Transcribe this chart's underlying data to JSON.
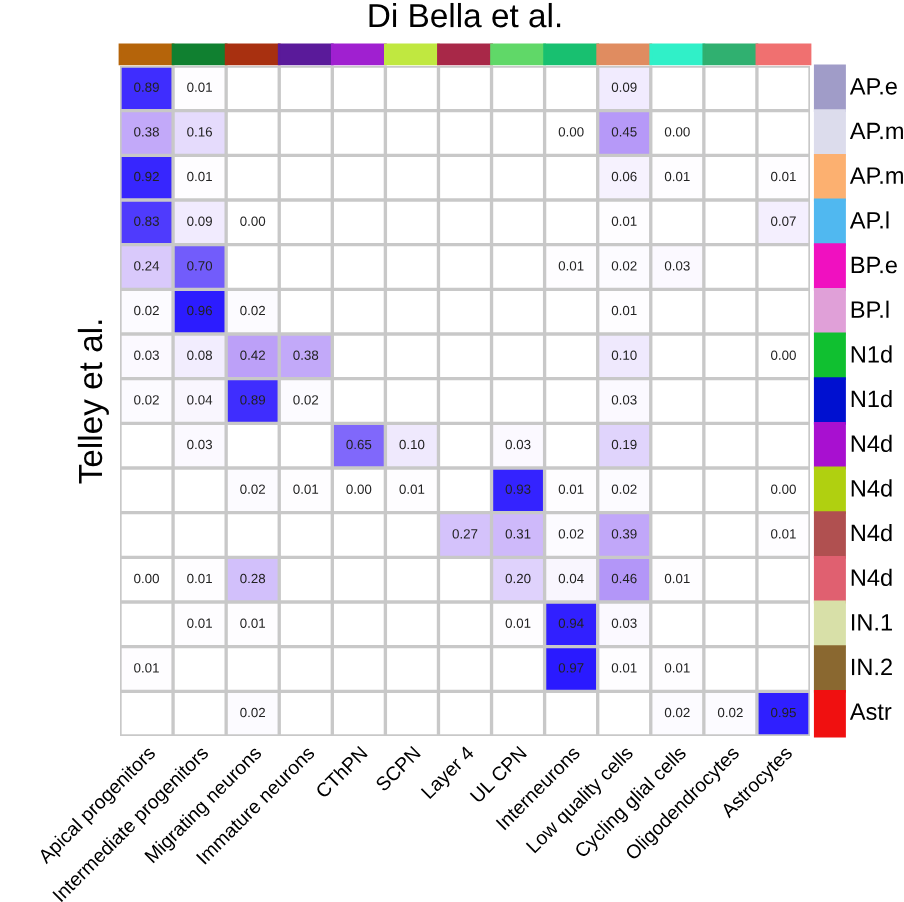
{
  "chart_data": {
    "type": "heatmap",
    "title": "Di Bella et al.",
    "ylabel": "Telley et al.",
    "data_labels": true,
    "categories": [
      "Apical progenitors",
      "Intermediate progenitors",
      "Migrating neurons",
      "Immature neurons",
      "CThPN",
      "SCPN",
      "Layer 4",
      "UL CPN",
      "Interneurons",
      "Low quality cells",
      "Cycling glial cells",
      "Oligodendrocytes",
      "Astrocytes"
    ],
    "y_categories": [
      "AP.e",
      "AP.m",
      "AP.m",
      "AP.l",
      "BP.e",
      "BP.l",
      "N1d",
      "N1d",
      "N4d",
      "N4d",
      "N4d",
      "N4d",
      "IN.1",
      "IN.2",
      "Astr"
    ],
    "cells": [
      [
        0.89,
        0.01,
        null,
        null,
        null,
        null,
        null,
        null,
        null,
        0.09,
        null,
        null,
        null
      ],
      [
        0.38,
        0.16,
        null,
        null,
        null,
        null,
        null,
        null,
        0.0,
        0.45,
        0.0,
        null,
        null
      ],
      [
        0.92,
        0.01,
        null,
        null,
        null,
        null,
        null,
        null,
        null,
        0.06,
        0.01,
        null,
        0.01
      ],
      [
        0.83,
        0.09,
        0.0,
        null,
        null,
        null,
        null,
        null,
        null,
        0.01,
        null,
        null,
        0.07
      ],
      [
        0.24,
        0.7,
        null,
        null,
        null,
        null,
        null,
        null,
        0.01,
        0.02,
        0.03,
        null,
        null
      ],
      [
        0.02,
        0.96,
        0.02,
        null,
        null,
        null,
        null,
        null,
        null,
        0.01,
        null,
        null,
        null
      ],
      [
        0.03,
        0.08,
        0.42,
        0.38,
        null,
        null,
        null,
        null,
        null,
        0.1,
        null,
        null,
        0.0
      ],
      [
        0.02,
        0.04,
        0.89,
        0.02,
        null,
        null,
        null,
        null,
        null,
        0.03,
        null,
        null,
        null
      ],
      [
        null,
        0.03,
        null,
        null,
        0.65,
        0.1,
        null,
        0.03,
        null,
        0.19,
        null,
        null,
        null
      ],
      [
        null,
        null,
        0.02,
        0.01,
        0.0,
        0.01,
        null,
        0.93,
        0.01,
        0.02,
        null,
        null,
        0.0
      ],
      [
        null,
        null,
        null,
        null,
        null,
        null,
        0.27,
        0.31,
        0.02,
        0.39,
        null,
        null,
        0.01
      ],
      [
        0.0,
        0.01,
        0.28,
        null,
        null,
        null,
        null,
        0.2,
        0.04,
        0.46,
        0.01,
        null,
        null
      ],
      [
        null,
        0.01,
        0.01,
        null,
        null,
        null,
        null,
        0.01,
        0.94,
        0.03,
        null,
        null,
        null
      ],
      [
        0.01,
        null,
        null,
        null,
        null,
        null,
        null,
        null,
        0.97,
        0.01,
        0.01,
        null,
        null
      ],
      [
        null,
        null,
        0.02,
        null,
        null,
        null,
        null,
        null,
        null,
        null,
        0.02,
        0.02,
        0.95
      ]
    ],
    "grid": true,
    "cell_labels": [
      [
        "0.89",
        "0.01",
        null,
        null,
        null,
        null,
        null,
        null,
        null,
        "0.09",
        null,
        null,
        null
      ],
      [
        "0.38",
        "0.16",
        null,
        null,
        null,
        null,
        null,
        null,
        "0.00",
        "0.45",
        "0.00",
        null,
        null
      ],
      [
        "0.92",
        "0.01",
        null,
        null,
        null,
        null,
        null,
        null,
        null,
        "0.06",
        "0.01",
        null,
        "0.01"
      ],
      [
        "0.83",
        "0.09",
        "0.00",
        null,
        null,
        null,
        null,
        null,
        null,
        "0.01",
        null,
        null,
        "0.07"
      ],
      [
        "0.24",
        "0.70",
        null,
        null,
        null,
        null,
        null,
        null,
        "0.01",
        "0.02",
        "0.03",
        null,
        null
      ],
      [
        "0.02",
        "0.96",
        "0.02",
        null,
        null,
        null,
        null,
        null,
        null,
        "0.01",
        null,
        null,
        null
      ],
      [
        "0.03",
        "0.08",
        "0.42",
        "0.38",
        null,
        null,
        null,
        null,
        null,
        "0.10",
        null,
        null,
        "0.00"
      ],
      [
        "0.02",
        "0.04",
        "0.89",
        "0.02",
        null,
        null,
        null,
        null,
        null,
        "0.03",
        null,
        null,
        null
      ],
      [
        null,
        "0.03",
        null,
        null,
        "0.65",
        "0.10",
        null,
        "0.03",
        null,
        "0.19",
        null,
        null,
        null
      ],
      [
        null,
        null,
        "0.02",
        "0.01",
        "0.00",
        "0.01",
        null,
        "0.93",
        "0.01",
        "0.02",
        null,
        null,
        "0.00"
      ],
      [
        null,
        null,
        null,
        null,
        null,
        null,
        "0.27",
        "0.31",
        "0.02",
        "0.39",
        null,
        null,
        "0.01"
      ],
      [
        "0.00",
        "0.01",
        "0.28",
        null,
        null,
        null,
        null,
        "0.20",
        "0.04",
        "0.46",
        "0.01",
        null,
        null
      ],
      [
        null,
        "0.01",
        "0.01",
        null,
        null,
        null,
        null,
        "0.01",
        "0.94",
        "0.03",
        null,
        null,
        null
      ],
      [
        "0.01",
        null,
        null,
        null,
        null,
        null,
        null,
        null,
        "0.97",
        "0.01",
        "0.01",
        null,
        null
      ],
      [
        null,
        null,
        "0.02",
        null,
        null,
        null,
        null,
        null,
        null,
        null,
        "0.02",
        "0.02",
        "0.95"
      ]
    ]
  }
}
